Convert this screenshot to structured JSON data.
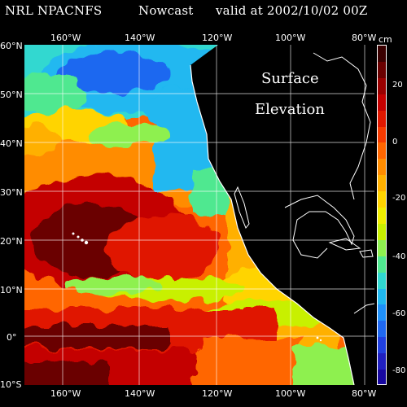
{
  "header": {
    "model": "NRL NPACNFS",
    "type": "Nowcast",
    "valid": "valid at 2002/10/02 00Z"
  },
  "map_labels": {
    "line1": "Surface",
    "line2": "Elevation"
  },
  "axes": {
    "lon_labels": [
      "160°W",
      "140°W",
      "120°W",
      "100°W",
      "80°W"
    ],
    "lat_labels": [
      "60°N",
      "50°N",
      "40°N",
      "30°N",
      "20°N",
      "10°N",
      "0°",
      "10°S"
    ]
  },
  "colorbar": {
    "unit": "cm",
    "ticks": [
      "20",
      "0",
      "-20",
      "-40",
      "-60",
      "-80"
    ],
    "colors": [
      "#3a0000",
      "#6a0000",
      "#9a0000",
      "#c40000",
      "#e01800",
      "#f53a00",
      "#ff6600",
      "#ff8c00",
      "#ffb000",
      "#ffd400",
      "#f0ee00",
      "#c8f000",
      "#8ef050",
      "#50e890",
      "#30d8d0",
      "#20b8f0",
      "#1f90f8",
      "#1f68f0",
      "#2040e0",
      "#2020c0",
      "#1808a0"
    ]
  },
  "icons": {
    "coastline": "coastline-outline",
    "graticule": "lat-lon-grid"
  }
}
